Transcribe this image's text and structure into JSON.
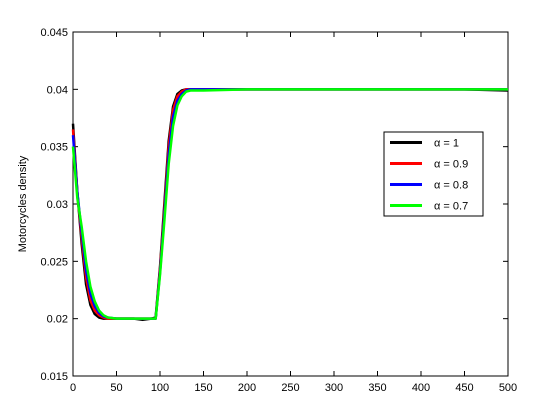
{
  "chart_data": {
    "type": "line",
    "y_label": "Motorcycles density",
    "x": [
      0,
      5,
      10,
      15,
      20,
      25,
      30,
      35,
      40,
      50,
      60,
      70,
      80,
      90,
      95,
      100,
      105,
      110,
      115,
      120,
      125,
      130,
      135,
      140,
      150,
      200,
      250,
      300,
      350,
      400,
      450,
      500
    ],
    "series": [
      {
        "name": "α = 1",
        "color": "#000000",
        "values": [
          0.037,
          0.031,
          0.0265,
          0.023,
          0.0212,
          0.0204,
          0.0201,
          0.02,
          0.02,
          0.02,
          0.02,
          0.02,
          0.0199,
          0.02,
          0.0201,
          0.0245,
          0.03,
          0.0355,
          0.0385,
          0.0396,
          0.0399,
          0.04,
          0.04,
          0.04,
          0.04,
          0.04,
          0.04,
          0.04,
          0.04,
          0.04,
          0.04,
          0.0399
        ]
      },
      {
        "name": "α = 0.9",
        "color": "#ff0000",
        "values": [
          0.0365,
          0.031,
          0.027,
          0.0236,
          0.0216,
          0.0207,
          0.0203,
          0.0201,
          0.02,
          0.02,
          0.02,
          0.02,
          0.02,
          0.02,
          0.02,
          0.0243,
          0.0295,
          0.035,
          0.0382,
          0.0394,
          0.0398,
          0.04,
          0.04,
          0.04,
          0.04,
          0.04,
          0.04,
          0.04,
          0.04,
          0.04,
          0.04,
          0.04
        ]
      },
      {
        "name": "α = 0.8",
        "color": "#0000ff",
        "values": [
          0.036,
          0.031,
          0.0275,
          0.0242,
          0.0222,
          0.0211,
          0.0205,
          0.0202,
          0.0201,
          0.02,
          0.02,
          0.02,
          0.02,
          0.02,
          0.02,
          0.024,
          0.029,
          0.0343,
          0.0376,
          0.039,
          0.0396,
          0.0399,
          0.04,
          0.04,
          0.04,
          0.04,
          0.04,
          0.04,
          0.04,
          0.04,
          0.04,
          0.04
        ]
      },
      {
        "name": "α = 0.7",
        "color": "#00ff00",
        "values": [
          0.035,
          0.0305,
          0.028,
          0.025,
          0.0228,
          0.0215,
          0.0207,
          0.0203,
          0.0201,
          0.02,
          0.02,
          0.02,
          0.02,
          0.02,
          0.02,
          0.0238,
          0.0285,
          0.0335,
          0.0368,
          0.0386,
          0.0394,
          0.0398,
          0.0399,
          0.0399,
          0.0399,
          0.04,
          0.04,
          0.04,
          0.04,
          0.04,
          0.04,
          0.04
        ]
      }
    ],
    "xlim": [
      0,
      500
    ],
    "xticks": [
      0,
      50,
      100,
      150,
      200,
      250,
      300,
      350,
      400,
      450,
      500
    ],
    "ylim": [
      0.015,
      0.045
    ],
    "yticks": [
      0.015,
      0.02,
      0.025,
      0.03,
      0.035,
      0.04,
      0.045
    ],
    "grid": false,
    "legend": "right"
  }
}
